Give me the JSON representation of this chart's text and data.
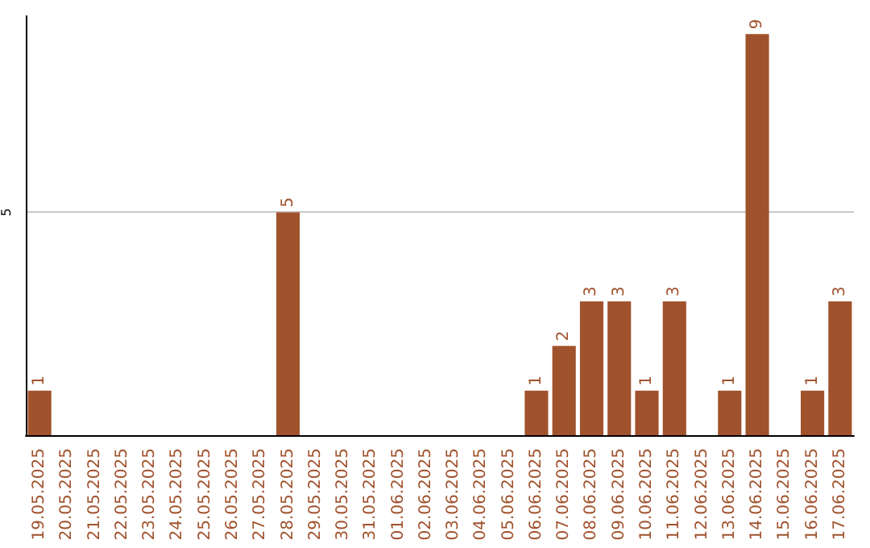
{
  "chart_data": {
    "type": "bar",
    "categories": [
      "19.05.2025",
      "20.05.2025",
      "21.05.2025",
      "22.05.2025",
      "23.05.2025",
      "24.05.2025",
      "25.05.2025",
      "26.05.2025",
      "27.05.2025",
      "28.05.2025",
      "29.05.2025",
      "30.05.2025",
      "31.05.2025",
      "01.06.2025",
      "02.06.2025",
      "03.06.2025",
      "04.06.2025",
      "05.06.2025",
      "06.06.2025",
      "07.06.2025",
      "08.06.2025",
      "09.06.2025",
      "10.06.2025",
      "11.06.2025",
      "12.06.2025",
      "13.06.2025",
      "14.06.2025",
      "15.06.2025",
      "16.06.2025",
      "17.06.2025"
    ],
    "values": [
      1,
      0,
      0,
      0,
      0,
      0,
      0,
      0,
      0,
      5,
      0,
      0,
      0,
      0,
      0,
      0,
      0,
      0,
      1,
      2,
      3,
      3,
      1,
      3,
      0,
      1,
      9,
      0,
      1,
      3
    ],
    "value_labels": [
      "1",
      null,
      null,
      null,
      null,
      null,
      null,
      null,
      null,
      "5",
      null,
      null,
      null,
      null,
      null,
      null,
      null,
      null,
      "1",
      "2",
      "3",
      "3",
      "1",
      "3",
      null,
      "1",
      "9",
      null,
      "1",
      "3"
    ],
    "color": "#a0522d",
    "ylim": [
      0,
      9.4
    ],
    "yticks": [
      {
        "value": 0,
        "label": null
      },
      5
    ],
    "grid": "y"
  }
}
